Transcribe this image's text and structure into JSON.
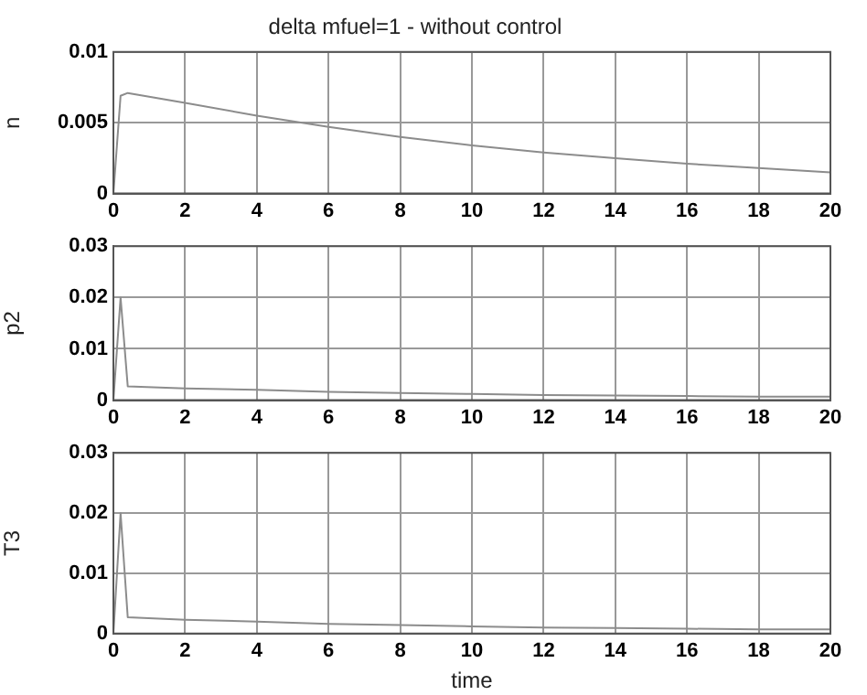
{
  "chart_data": [
    {
      "type": "line",
      "title": "delta mfuel=1 - without control",
      "ylabel": "n",
      "x": [
        0,
        0.2,
        0.4,
        2,
        4,
        6,
        8,
        10,
        12,
        14,
        16,
        18,
        20
      ],
      "series": [
        {
          "color": "#8c8c8c",
          "values": [
            0,
            0.0069,
            0.0071,
            0.0064,
            0.0055,
            0.0047,
            0.004,
            0.0034,
            0.0029,
            0.0025,
            0.0021,
            0.0018,
            0.0015
          ]
        }
      ],
      "xlim": [
        0,
        20
      ],
      "xticks": [
        0,
        2,
        4,
        6,
        8,
        10,
        12,
        14,
        16,
        18,
        20
      ],
      "ylim": [
        0,
        0.01
      ],
      "yticks": [
        0,
        0.005,
        0.01
      ],
      "grid": true,
      "legend": false
    },
    {
      "type": "line",
      "ylabel": "p2",
      "x": [
        0,
        0.2,
        0.4,
        2,
        4,
        6,
        8,
        10,
        12,
        14,
        16,
        18,
        20
      ],
      "series": [
        {
          "color": "#8c8c8c",
          "values": [
            0,
            0.02,
            0.0027,
            0.0023,
            0.002,
            0.0016,
            0.0014,
            0.0012,
            0.001,
            0.0009,
            0.0008,
            0.0007,
            0.0007
          ]
        }
      ],
      "xlim": [
        0,
        20
      ],
      "xticks": [
        0,
        2,
        4,
        6,
        8,
        10,
        12,
        14,
        16,
        18,
        20
      ],
      "ylim": [
        0,
        0.03
      ],
      "yticks": [
        0,
        0.01,
        0.02,
        0.03
      ],
      "grid": true,
      "legend": false
    },
    {
      "type": "line",
      "ylabel": "T3",
      "xlabel": "time",
      "x": [
        0,
        0.2,
        0.4,
        2,
        4,
        6,
        8,
        10,
        12,
        14,
        16,
        18,
        20
      ],
      "series": [
        {
          "color": "#8c8c8c",
          "values": [
            0,
            0.02,
            0.0027,
            0.0023,
            0.002,
            0.0016,
            0.0014,
            0.0012,
            0.001,
            0.0009,
            0.0008,
            0.0007,
            0.0007
          ]
        }
      ],
      "xlim": [
        0,
        20
      ],
      "xticks": [
        0,
        2,
        4,
        6,
        8,
        10,
        12,
        14,
        16,
        18,
        20
      ],
      "ylim": [
        0,
        0.03
      ],
      "yticks": [
        0,
        0.01,
        0.02,
        0.03
      ],
      "grid": true,
      "legend": false
    }
  ]
}
